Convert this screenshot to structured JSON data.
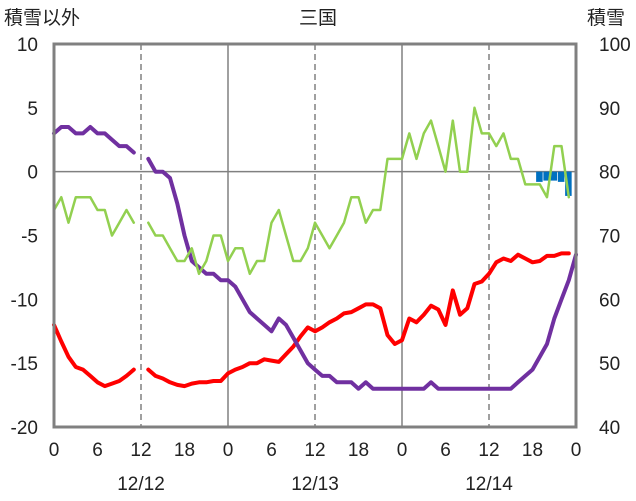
{
  "chart_data": {
    "type": "line",
    "title": "三国",
    "ylabel_left": "積雪以外",
    "ylabel_right": "積雪",
    "ylim_left": [
      -20,
      10
    ],
    "ylim_right": [
      40,
      100
    ],
    "left_ticks": [
      "10",
      "5",
      "0",
      "-5",
      "-10",
      "-15",
      "-20"
    ],
    "right_ticks": [
      "100",
      "90",
      "80",
      "70",
      "60",
      "50",
      "40"
    ],
    "x_ticks": [
      "0",
      "6",
      "12",
      "18",
      "0",
      "6",
      "12",
      "18",
      "0",
      "6",
      "12",
      "18",
      "0"
    ],
    "dates": [
      "12/12",
      "12/13",
      "12/14"
    ],
    "xlim_hours": [
      0,
      72
    ],
    "colors": {
      "temperature": "#ff0000",
      "snow_depth": "#7030a0",
      "green_series": "#92d050",
      "bars": "#0070c0",
      "frame": "#808080"
    },
    "series": [
      {
        "axis": "left",
        "color": "#ff0000",
        "segments": [
          [
            [
              0,
              -12
            ],
            [
              1,
              -13.3
            ],
            [
              2,
              -14.5
            ],
            [
              3,
              -15.3
            ],
            [
              4,
              -15.5
            ],
            [
              5,
              -16
            ],
            [
              6,
              -16.5
            ],
            [
              7,
              -16.8
            ],
            [
              8,
              -16.6
            ],
            [
              9,
              -16.4
            ],
            [
              10,
              -16
            ],
            [
              11,
              -15.5
            ]
          ],
          [
            [
              13,
              -15.5
            ],
            [
              14,
              -16
            ],
            [
              15,
              -16.2
            ],
            [
              16,
              -16.5
            ],
            [
              17,
              -16.7
            ],
            [
              18,
              -16.8
            ],
            [
              19,
              -16.6
            ],
            [
              20,
              -16.5
            ],
            [
              21,
              -16.5
            ],
            [
              22,
              -16.4
            ],
            [
              23,
              -16.4
            ],
            [
              24,
              -15.8
            ],
            [
              25,
              -15.5
            ],
            [
              26,
              -15.3
            ],
            [
              27,
              -15
            ],
            [
              28,
              -15
            ],
            [
              29,
              -14.7
            ],
            [
              30,
              -14.8
            ],
            [
              31,
              -14.9
            ],
            [
              32,
              -14.3
            ],
            [
              33,
              -13.7
            ],
            [
              34,
              -12.9
            ],
            [
              35,
              -12.2
            ],
            [
              36,
              -12.5
            ],
            [
              37,
              -12.2
            ],
            [
              38,
              -11.8
            ],
            [
              39,
              -11.5
            ],
            [
              40,
              -11.1
            ],
            [
              41,
              -11
            ],
            [
              42,
              -10.7
            ],
            [
              43,
              -10.4
            ],
            [
              44,
              -10.4
            ],
            [
              45,
              -10.7
            ],
            [
              46,
              -12.8
            ],
            [
              47,
              -13.5
            ],
            [
              48,
              -13.2
            ],
            [
              49,
              -11.5
            ],
            [
              50,
              -11.8
            ],
            [
              51,
              -11.2
            ],
            [
              52,
              -10.5
            ],
            [
              53,
              -10.8
            ],
            [
              54,
              -12
            ],
            [
              55,
              -9.3
            ],
            [
              56,
              -11.2
            ],
            [
              57,
              -10.7
            ],
            [
              58,
              -8.8
            ],
            [
              59,
              -8.6
            ],
            [
              60,
              -8
            ],
            [
              61,
              -7.1
            ],
            [
              62,
              -6.8
            ],
            [
              63,
              -7
            ],
            [
              64,
              -6.5
            ],
            [
              65,
              -6.8
            ],
            [
              66,
              -7.1
            ],
            [
              67,
              -7
            ],
            [
              68,
              -6.6
            ],
            [
              69,
              -6.6
            ],
            [
              70,
              -6.4
            ],
            [
              71,
              -6.4
            ]
          ]
        ]
      },
      {
        "axis": "right",
        "color": "#7030a0",
        "segments": [
          [
            [
              0,
              86
            ],
            [
              1,
              87
            ],
            [
              2,
              87
            ],
            [
              3,
              86
            ],
            [
              4,
              86
            ],
            [
              5,
              87
            ],
            [
              6,
              86
            ],
            [
              7,
              86
            ],
            [
              8,
              85
            ],
            [
              9,
              84
            ],
            [
              10,
              84
            ],
            [
              11,
              83
            ]
          ],
          [
            [
              13,
              82
            ],
            [
              14,
              80
            ],
            [
              15,
              80
            ],
            [
              16,
              79
            ],
            [
              17,
              75
            ],
            [
              18,
              70
            ],
            [
              19,
              66
            ],
            [
              20,
              65
            ],
            [
              21,
              64
            ],
            [
              22,
              64
            ],
            [
              23,
              63
            ],
            [
              24,
              63
            ],
            [
              25,
              62
            ],
            [
              26,
              60
            ],
            [
              27,
              58
            ],
            [
              28,
              57
            ],
            [
              29,
              56
            ],
            [
              30,
              55
            ],
            [
              31,
              57
            ],
            [
              32,
              56
            ],
            [
              33,
              54
            ],
            [
              34,
              52
            ],
            [
              35,
              50
            ],
            [
              36,
              49
            ],
            [
              37,
              48
            ],
            [
              38,
              48
            ],
            [
              39,
              47
            ],
            [
              40,
              47
            ],
            [
              41,
              47
            ],
            [
              42,
              46
            ],
            [
              43,
              47
            ],
            [
              44,
              46
            ],
            [
              45,
              46
            ],
            [
              46,
              46
            ],
            [
              47,
              46
            ],
            [
              48,
              46
            ],
            [
              49,
              46
            ],
            [
              50,
              46
            ],
            [
              51,
              46
            ],
            [
              52,
              47
            ],
            [
              53,
              46
            ],
            [
              54,
              46
            ],
            [
              55,
              46
            ],
            [
              56,
              46
            ],
            [
              57,
              46
            ],
            [
              58,
              46
            ],
            [
              59,
              46
            ],
            [
              60,
              46
            ],
            [
              61,
              46
            ],
            [
              62,
              46
            ],
            [
              63,
              46
            ],
            [
              64,
              47
            ],
            [
              65,
              48
            ],
            [
              66,
              49
            ],
            [
              67,
              51
            ],
            [
              68,
              53
            ],
            [
              69,
              57
            ],
            [
              70,
              60
            ],
            [
              71,
              63
            ],
            [
              72,
              67
            ]
          ]
        ]
      },
      {
        "axis": "left",
        "color": "#92d050",
        "segments": [
          [
            [
              0,
              -3
            ],
            [
              1,
              -2
            ],
            [
              2,
              -4
            ],
            [
              3,
              -2
            ],
            [
              4,
              -2
            ],
            [
              5,
              -2
            ],
            [
              6,
              -3
            ],
            [
              7,
              -3
            ],
            [
              8,
              -5
            ],
            [
              9,
              -4
            ],
            [
              10,
              -3
            ],
            [
              11,
              -4
            ]
          ],
          [
            [
              13,
              -4
            ],
            [
              14,
              -5
            ],
            [
              15,
              -5
            ],
            [
              16,
              -6
            ],
            [
              17,
              -7
            ],
            [
              18,
              -7
            ],
            [
              19,
              -6
            ],
            [
              20,
              -8
            ],
            [
              21,
              -7
            ],
            [
              22,
              -5
            ],
            [
              23,
              -5
            ],
            [
              24,
              -7
            ],
            [
              25,
              -6
            ],
            [
              26,
              -6
            ],
            [
              27,
              -8
            ],
            [
              28,
              -7
            ],
            [
              29,
              -7
            ],
            [
              30,
              -4
            ],
            [
              31,
              -3
            ],
            [
              32,
              -5
            ],
            [
              33,
              -7
            ],
            [
              34,
              -7
            ],
            [
              35,
              -6
            ],
            [
              36,
              -4
            ],
            [
              37,
              -5
            ],
            [
              38,
              -6
            ],
            [
              39,
              -5
            ],
            [
              40,
              -4
            ],
            [
              41,
              -2
            ],
            [
              42,
              -2
            ],
            [
              43,
              -4
            ],
            [
              44,
              -3
            ],
            [
              45,
              -3
            ],
            [
              46,
              1
            ],
            [
              47,
              1
            ],
            [
              48,
              1
            ],
            [
              49,
              3
            ],
            [
              50,
              1
            ],
            [
              51,
              3
            ],
            [
              52,
              4
            ],
            [
              53,
              2
            ],
            [
              54,
              0
            ],
            [
              55,
              4
            ],
            [
              56,
              0
            ],
            [
              57,
              0
            ],
            [
              58,
              5
            ],
            [
              59,
              3
            ],
            [
              60,
              3
            ],
            [
              61,
              2
            ],
            [
              62,
              3
            ],
            [
              63,
              1
            ],
            [
              64,
              1
            ],
            [
              65,
              -1
            ],
            [
              66,
              -1
            ],
            [
              67,
              -1
            ],
            [
              68,
              -2
            ],
            [
              69,
              2
            ],
            [
              70,
              2
            ],
            [
              71,
              -2
            ]
          ]
        ]
      }
    ],
    "bars": {
      "axis": "left",
      "color": "#0070c0",
      "points": [
        [
          67,
          -0.8
        ],
        [
          68,
          -0.7
        ],
        [
          69,
          -0.7
        ],
        [
          70,
          -0.8
        ],
        [
          71,
          -1.9
        ]
      ]
    }
  }
}
